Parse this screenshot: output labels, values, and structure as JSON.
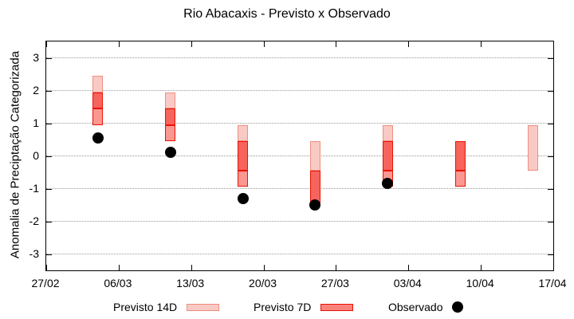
{
  "title": "Rio Abacaxis - Previsto x Observado",
  "colors": {
    "p14_fill": "#f9cac5",
    "p14_border": "#ef8e7e",
    "p7_dark_fill": "#f6645c",
    "p7_med_fill": "#fa9790",
    "p7_border": "#ea1205",
    "p7_legend_fill": "#f8837b",
    "observado": "#000000",
    "grid": "#999999",
    "axis": "#000000"
  },
  "legend": {
    "items": [
      {
        "label": "Previsto 14D",
        "swatch": "light"
      },
      {
        "label": "Previsto 7D",
        "swatch": "dark"
      },
      {
        "label": "Observado",
        "swatch": "dot"
      }
    ]
  },
  "chart_data": {
    "type": "bar",
    "subtype": "floating-range-bars-with-scatter",
    "title": "Rio Abacaxis - Previsto x Observado",
    "xlabel": "",
    "ylabel": "Anomalia de Preciptação Categorizada",
    "ylim": [
      -3.5,
      3.5
    ],
    "yticks": [
      3,
      2,
      1,
      0,
      -1,
      -2,
      -3
    ],
    "ytick_labels": [
      "3",
      "2",
      "1",
      "0",
      "-1",
      "-2",
      "-3"
    ],
    "grid": "horizontal-dotted",
    "legend_position": "bottom",
    "x_axis_days_range": [
      0,
      49
    ],
    "xticks_days": [
      0,
      7,
      14,
      21,
      28,
      35,
      42,
      49
    ],
    "xtick_labels": [
      "27/02",
      "06/03",
      "13/03",
      "20/03",
      "27/03",
      "03/04",
      "10/04",
      "17/04"
    ],
    "groups": [
      {
        "day": 5,
        "segments": [
          {
            "from": 1.95,
            "to": 2.45,
            "style": "light",
            "series": "Previsto 14D"
          },
          {
            "from": 1.45,
            "to": 1.95,
            "style": "dark",
            "series": "Previsto 7D"
          },
          {
            "from": 0.95,
            "to": 1.45,
            "style": "medium",
            "series": "Previsto 7D"
          }
        ],
        "observed": 0.55
      },
      {
        "day": 12,
        "segments": [
          {
            "from": 1.45,
            "to": 1.95,
            "style": "light",
            "series": "Previsto 14D"
          },
          {
            "from": 0.95,
            "to": 1.45,
            "style": "dark",
            "series": "Previsto 7D"
          },
          {
            "from": 0.45,
            "to": 0.95,
            "style": "medium",
            "series": "Previsto 7D"
          }
        ],
        "observed": 0.1
      },
      {
        "day": 19,
        "segments": [
          {
            "from": 0.45,
            "to": 0.95,
            "style": "light",
            "series": "Previsto 14D"
          },
          {
            "from": -0.45,
            "to": 0.45,
            "style": "dark",
            "series": "Previsto 7D"
          },
          {
            "from": -0.95,
            "to": -0.45,
            "style": "medium",
            "series": "Previsto 7D"
          }
        ],
        "observed": -1.3
      },
      {
        "day": 26,
        "segments": [
          {
            "from": -0.45,
            "to": 0.45,
            "style": "light",
            "series": "Previsto 14D"
          },
          {
            "from": -1.45,
            "to": -0.45,
            "style": "dark",
            "series": "Previsto 7D"
          }
        ],
        "observed": -1.5
      },
      {
        "day": 33,
        "segments": [
          {
            "from": 0.45,
            "to": 0.95,
            "style": "light",
            "series": "Previsto 14D"
          },
          {
            "from": -0.45,
            "to": 0.45,
            "style": "dark",
            "series": "Previsto 7D"
          },
          {
            "from": -0.95,
            "to": -0.45,
            "style": "medium",
            "series": "Previsto 7D"
          }
        ],
        "observed": -0.85
      },
      {
        "day": 40,
        "segments": [
          {
            "from": -0.45,
            "to": 0.45,
            "style": "dark",
            "series": "Previsto 7D"
          },
          {
            "from": -0.95,
            "to": -0.45,
            "style": "medium",
            "series": "Previsto 7D"
          }
        ],
        "observed": null
      },
      {
        "day": 47,
        "segments": [
          {
            "from": -0.45,
            "to": 0.95,
            "style": "light",
            "series": "Previsto 14D"
          }
        ],
        "observed": null
      }
    ]
  }
}
